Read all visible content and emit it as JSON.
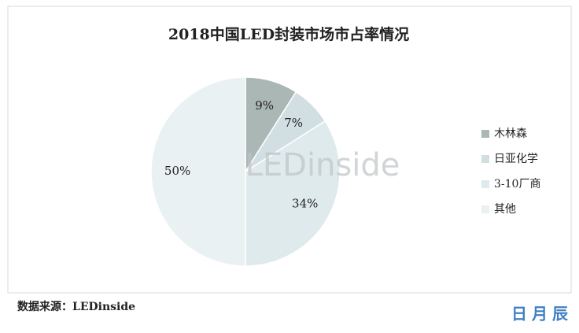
{
  "chart_data": {
    "type": "pie",
    "title": "2018中国LED封装市场市占率情况",
    "categories": [
      "木林森",
      "日亚化学",
      "3-10厂商",
      "其他"
    ],
    "values": [
      9,
      7,
      34,
      50
    ],
    "value_labels": [
      "9%",
      "7%",
      "34%",
      "50%"
    ],
    "colors": [
      "#abb7b5",
      "#d2dfe2",
      "#dfeaec",
      "#e9f1f2"
    ],
    "legend": "right",
    "watermark": "LEDinside"
  },
  "source": "数据来源：LEDinside",
  "brand": "日月辰"
}
